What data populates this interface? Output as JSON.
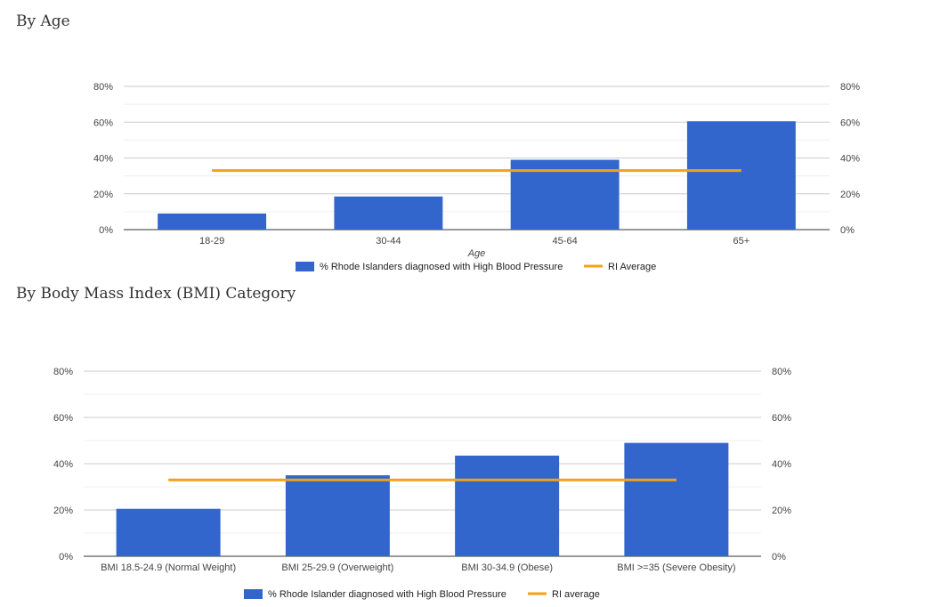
{
  "sections": [
    {
      "title": "By Age",
      "chart_data": {
        "type": "bar",
        "categories": [
          "18-29",
          "30-44",
          "45-64",
          "65+"
        ],
        "series": [
          {
            "name": "% Rhode Islanders diagnosed with High Blood Pressure",
            "values": [
              9,
              18.5,
              39,
              60.5
            ],
            "color": "#3366cc"
          }
        ],
        "reference_line": {
          "name": "RI Average",
          "value": 33,
          "color": "#f4a11a"
        },
        "xlabel": "Age",
        "ylabel": "",
        "ylim": [
          0,
          80
        ],
        "yticks": [
          "0%",
          "20%",
          "40%",
          "60%",
          "80%"
        ],
        "grid": true,
        "legend_position": "bottom"
      }
    },
    {
      "title": "By Body Mass Index (BMI) Category",
      "chart_data": {
        "type": "bar",
        "categories": [
          "BMI 18.5-24.9 (Normal Weight)",
          "BMI 25-29.9 (Overweight)",
          "BMI 30-34.9 (Obese)",
          "BMI >=35 (Severe Obesity)"
        ],
        "series": [
          {
            "name": "% Rhode Islander diagnosed with High Blood Pressure",
            "values": [
              20.5,
              35,
              43.5,
              49
            ],
            "color": "#3366cc"
          }
        ],
        "reference_line": {
          "name": "RI average",
          "value": 33,
          "color": "#f4a11a"
        },
        "xlabel": "",
        "ylabel": "",
        "ylim": [
          0,
          80
        ],
        "yticks": [
          "0%",
          "20%",
          "40%",
          "60%",
          "80%"
        ],
        "grid": true,
        "legend_position": "bottom"
      }
    }
  ]
}
